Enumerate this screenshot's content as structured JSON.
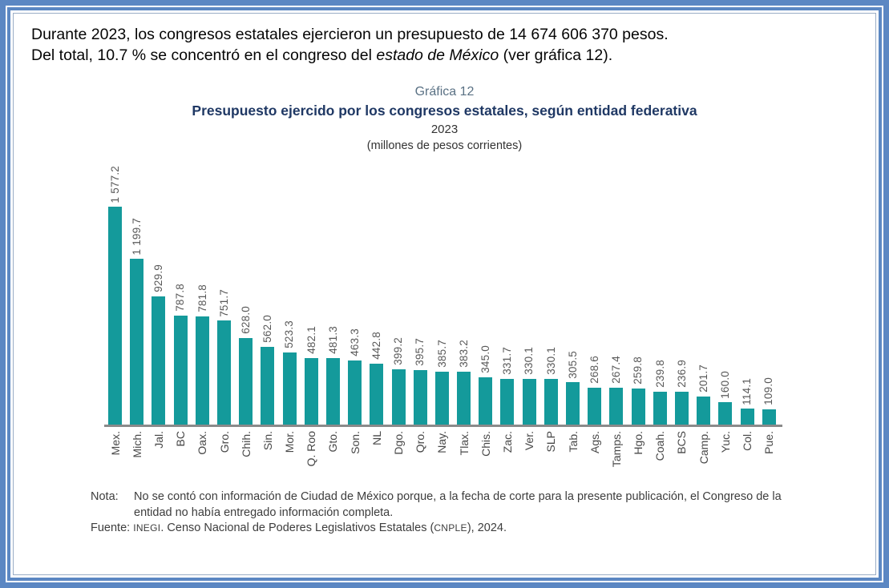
{
  "intro": {
    "line1": "Durante 2023, los congresos estatales ejercieron un presupuesto de 14 674 606 370 pesos.",
    "line2_prefix": "Del total, 10.7 % se concentró en el congreso del ",
    "line2_italic": "estado de México",
    "line2_suffix": " (ver gráfica 12)."
  },
  "header": {
    "grafica_label": "Gráfica 12",
    "title": "Presupuesto ejercido por los congresos estatales, según entidad federativa",
    "year": "2023",
    "unit": "(millones de pesos corrientes)"
  },
  "chart_data": {
    "type": "bar",
    "title": "Presupuesto ejercido por los congresos estatales, según entidad federativa",
    "subtitle": "2023",
    "unit_label": "(millones de pesos corrientes)",
    "orientation": "vertical",
    "grid": false,
    "legend": false,
    "ylim": [
      0,
      1600
    ],
    "bar_color": "#149a9b",
    "axis_color": "#8a8a8a",
    "categories": [
      "Mex.",
      "Mich.",
      "Jal.",
      "BC",
      "Oax.",
      "Gro.",
      "Chih.",
      "Sin.",
      "Mor.",
      "Q. Roo",
      "Gto.",
      "Son.",
      "NL",
      "Dgo.",
      "Qro.",
      "Nay.",
      "Tlax.",
      "Chis.",
      "Zac.",
      "Ver.",
      "SLP",
      "Tab.",
      "Ags.",
      "Tamps.",
      "Hgo.",
      "Coah.",
      "BCS",
      "Camp.",
      "Yuc.",
      "Col.",
      "Pue."
    ],
    "values": [
      1577.2,
      1199.7,
      929.9,
      787.8,
      781.8,
      751.7,
      628.0,
      562.0,
      523.3,
      482.1,
      481.3,
      463.3,
      442.8,
      399.2,
      395.7,
      385.7,
      383.2,
      345.0,
      331.7,
      330.1,
      330.1,
      305.5,
      268.6,
      267.4,
      259.8,
      239.8,
      236.9,
      201.7,
      160.0,
      114.1,
      109.0
    ],
    "value_labels": [
      "1 577.2",
      "1 199.7",
      "929.9",
      "787.8",
      "781.8",
      "751.7",
      "628.0",
      "562.0",
      "523.3",
      "482.1",
      "481.3",
      "463.3",
      "442.8",
      "399.2",
      "395.7",
      "385.7",
      "383.2",
      "345.0",
      "331.7",
      "330.1",
      "330.1",
      "305.5",
      "268.6",
      "267.4",
      "259.8",
      "239.8",
      "236.9",
      "201.7",
      "160.0",
      "114.1",
      "109.0"
    ]
  },
  "note": {
    "label": "Nota:",
    "text": "No se contó con información de Ciudad de México porque, a la fecha de corte para la presente publicación, el Congreso de la entidad no había entregado información completa.",
    "source_label": "Fuente: ",
    "source_org": "INEGI",
    "source_mid": ". Censo Nacional de Poderes Legislativos Estatales (",
    "source_acronym": "CNPLE",
    "source_suffix": "), 2024."
  },
  "colors": {
    "frame_blue": "#5b87c3",
    "title_navy": "#1f3864",
    "grafica_gray_blue": "#5a7184",
    "bar_teal": "#149a9b"
  }
}
